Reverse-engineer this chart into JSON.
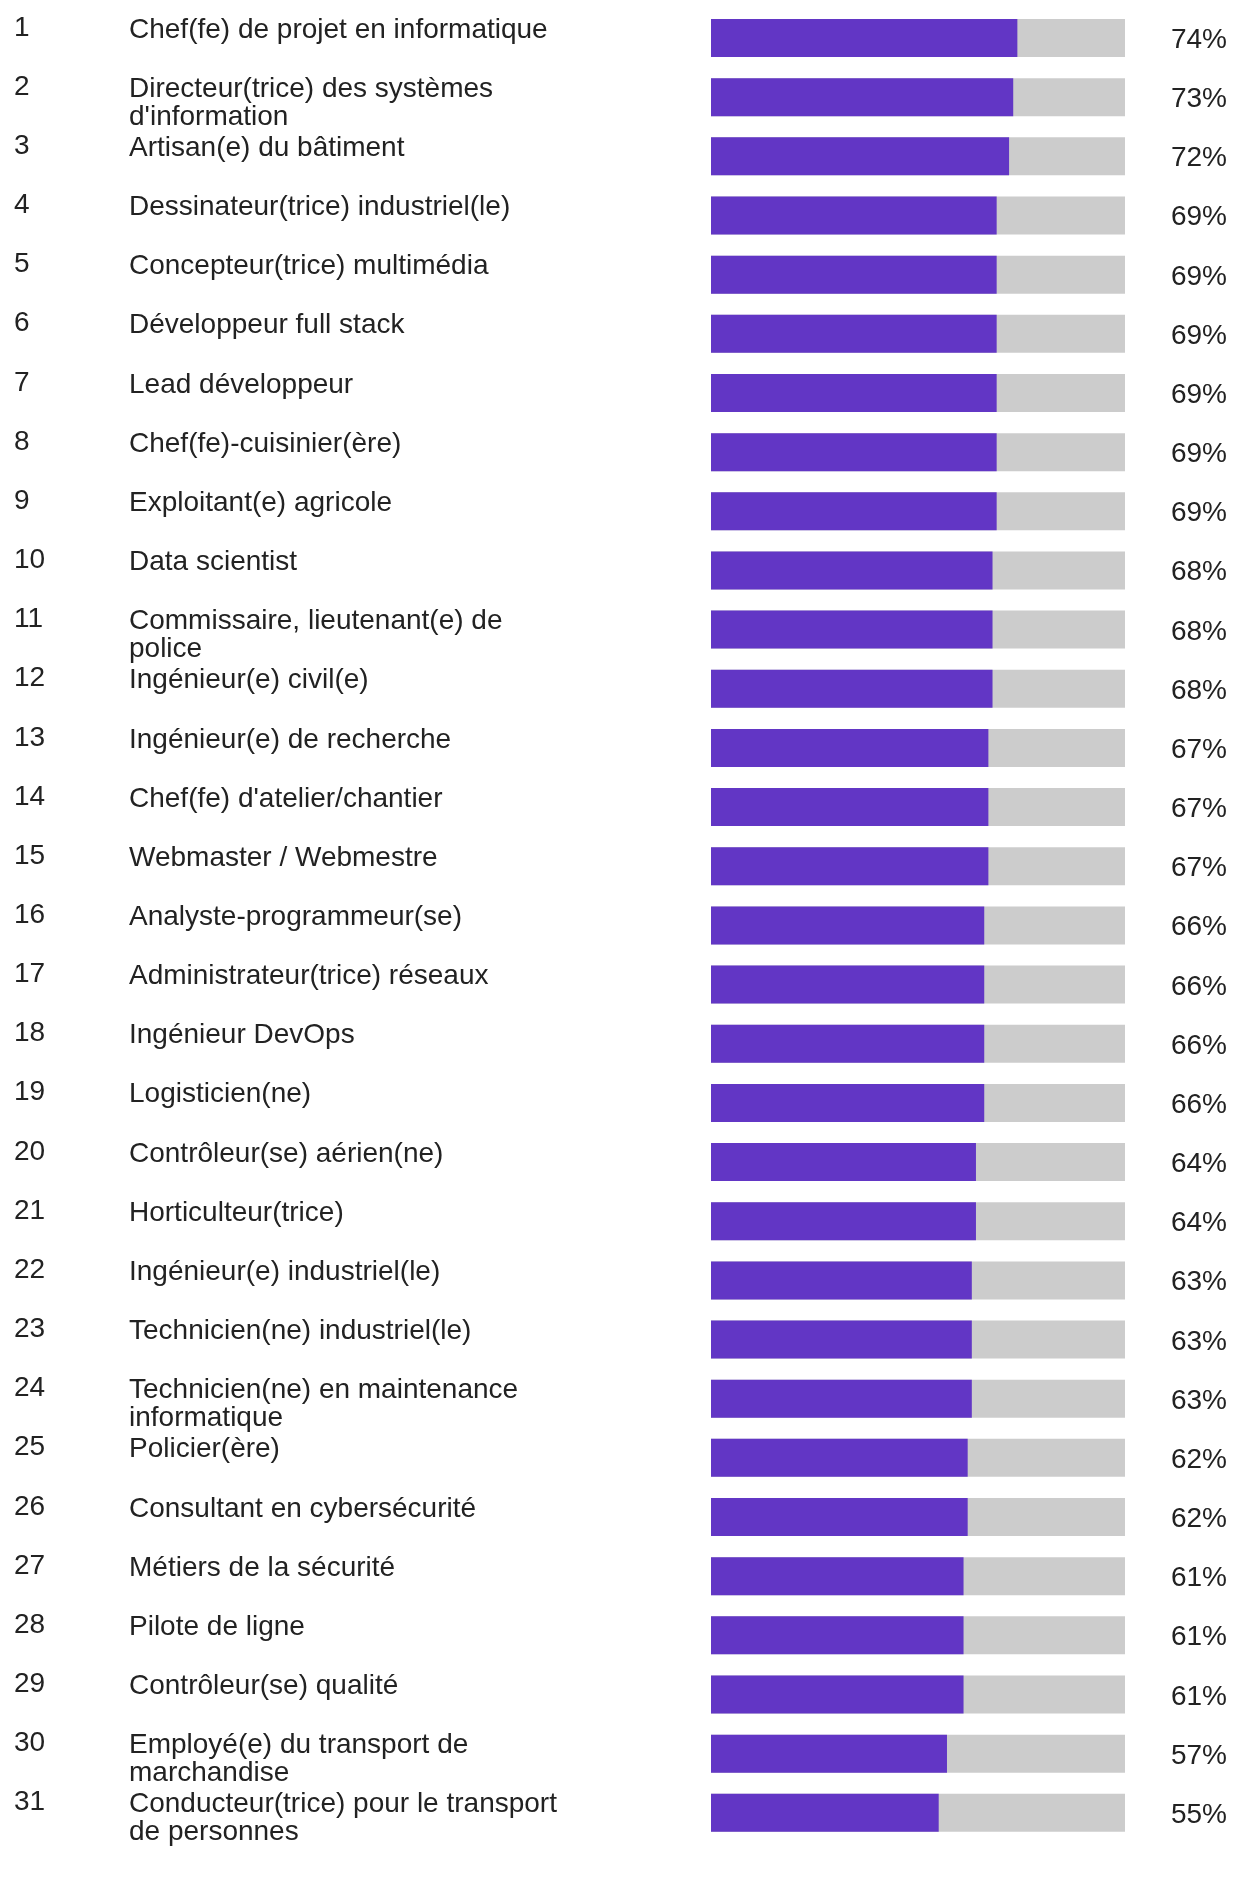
{
  "chart_data": {
    "type": "bar",
    "orientation": "horizontal",
    "categories": [
      "Chef(fe) de projet en informatique",
      "Directeur(trice) des systèmes d'information",
      "Artisan(e) du bâtiment",
      "Dessinateur(trice) industriel(le)",
      "Concepteur(trice) multimédia",
      "Développeur full stack",
      "Lead développeur",
      "Chef(fe)-cuisinier(ère)",
      "Exploitant(e) agricole",
      "Data scientist",
      "Commissaire, lieutenant(e) de police",
      "Ingénieur(e) civil(e)",
      "Ingénieur(e) de recherche",
      "Chef(fe) d'atelier/chantier",
      "Webmaster / Webmestre",
      "Analyste-programmeur(se)",
      "Administrateur(trice) réseaux",
      "Ingénieur DevOps",
      "Logisticien(ne)",
      "Contrôleur(se) aérien(ne)",
      "Horticulteur(trice)",
      "Ingénieur(e) industriel(le)",
      "Technicien(ne) industriel(le)",
      "Technicien(ne) en maintenance informatique",
      "Policier(ère)",
      "Consultant en cybersécurité",
      "Métiers de la sécurité",
      "Pilote de ligne",
      "Contrôleur(se) qualité",
      "Employé(e) du transport de marchandise",
      "Conducteur(trice) pour le transport de personnes"
    ],
    "values": [
      74,
      73,
      72,
      69,
      69,
      69,
      69,
      69,
      69,
      68,
      68,
      68,
      67,
      67,
      67,
      66,
      66,
      66,
      66,
      64,
      64,
      63,
      63,
      63,
      62,
      62,
      61,
      61,
      61,
      57,
      55
    ],
    "color": "#6236c5",
    "xlim": [
      0,
      100
    ],
    "value_labels": [
      "74%",
      "73%",
      "72%",
      "69%",
      "69%",
      "69%",
      "69%",
      "69%",
      "69%",
      "68%",
      "68%",
      "68%",
      "67%",
      "67%",
      "67%",
      "66%",
      "66%",
      "66%",
      "66%",
      "64%",
      "64%",
      "63%",
      "63%",
      "63%",
      "62%",
      "62%",
      "61%",
      "61%",
      "61%",
      "57%",
      "55%"
    ],
    "tick_labels": "y",
    "annotations": [
      "1",
      "2",
      "3",
      "4",
      "5",
      "6",
      "7",
      "8",
      "9",
      "10",
      "11",
      "12",
      "13",
      "14",
      "15",
      "16",
      "17",
      "18",
      "19",
      "20",
      "21",
      "22",
      "23",
      "24",
      "25",
      "26",
      "27",
      "28",
      "29",
      "30",
      "31"
    ]
  }
}
